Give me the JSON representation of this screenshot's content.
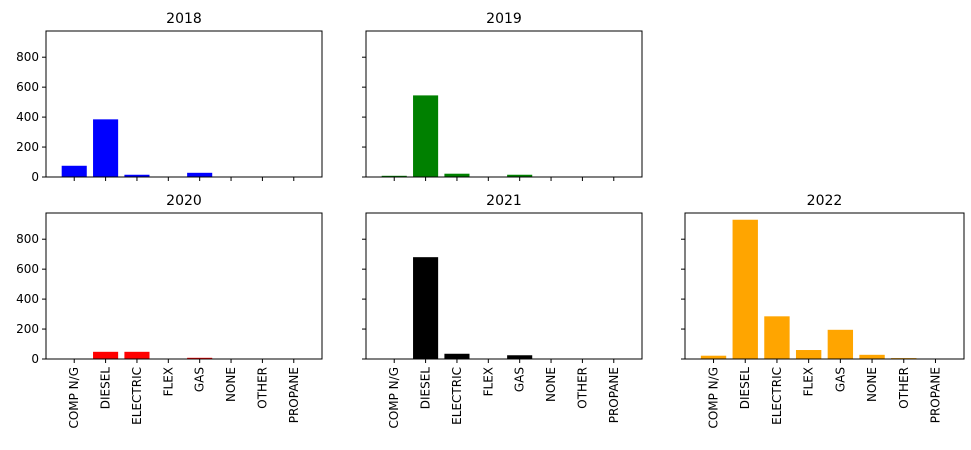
{
  "chart_data": {
    "type": "bar",
    "categories": [
      "COMP N/G",
      "DIESEL",
      "ELECTRIC",
      "FLEX",
      "GAS",
      "NONE",
      "OTHER",
      "PROPANE"
    ],
    "ylim": [
      0,
      975
    ],
    "yticks": [
      0,
      200,
      400,
      600,
      800
    ],
    "shared_y": true,
    "panels": [
      {
        "title": "2018",
        "color": "#0000ff",
        "values": [
          75,
          385,
          15,
          0,
          28,
          0,
          0,
          0
        ]
      },
      {
        "title": "2019",
        "color": "#008000",
        "values": [
          8,
          545,
          22,
          0,
          15,
          0,
          0,
          0
        ]
      },
      {
        "title": "2020",
        "color": "#ff0000",
        "values": [
          0,
          48,
          48,
          0,
          8,
          0,
          0,
          0
        ]
      },
      {
        "title": "2021",
        "color": "#000000",
        "values": [
          0,
          680,
          35,
          0,
          25,
          0,
          0,
          0
        ]
      },
      {
        "title": "2022",
        "color": "#ffa500",
        "values": [
          22,
          930,
          285,
          60,
          195,
          28,
          6,
          0
        ]
      }
    ]
  }
}
